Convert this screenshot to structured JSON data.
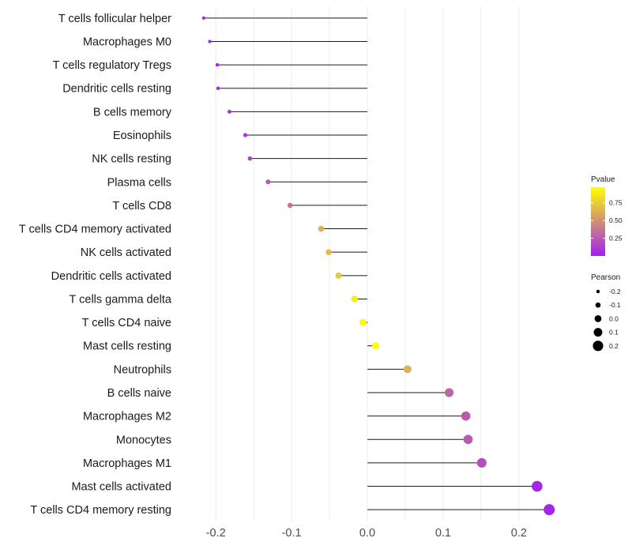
{
  "chart_data": {
    "type": "lollipop",
    "title": "",
    "xlabel": "",
    "ylabel": "",
    "xlim": [
      -0.245,
      0.245
    ],
    "x_ticks": [
      -0.2,
      -0.1,
      0.0,
      0.1,
      0.2
    ],
    "x_tick_labels": [
      "-0.2",
      "-0.1",
      "0.0",
      "0.1",
      "0.2"
    ],
    "grid": true,
    "baseline": 0,
    "categories": [
      "T cells follicular helper",
      "Macrophages M0",
      "T cells regulatory  Tregs",
      "Dendritic cells resting",
      "B cells memory",
      "Eosinophils",
      "NK cells resting",
      "Plasma cells",
      "T cells CD8",
      "T cells CD4 memory activated",
      "NK cells activated",
      "Dendritic cells activated",
      "T cells gamma delta",
      "T cells CD4 naive",
      "Mast cells resting",
      "Neutrophils",
      "B cells naive",
      "Macrophages M2",
      "Monocytes",
      "Macrophages M1",
      "Mast cells activated",
      "T cells CD4 memory resting"
    ],
    "pearson": [
      -0.216,
      -0.208,
      -0.198,
      -0.197,
      -0.182,
      -0.161,
      -0.155,
      -0.131,
      -0.102,
      -0.061,
      -0.051,
      -0.038,
      -0.017,
      -0.006,
      0.011,
      0.053,
      0.108,
      0.13,
      0.133,
      0.151,
      0.224,
      0.24
    ],
    "pvalue": [
      0.02,
      0.03,
      0.04,
      0.04,
      0.06,
      0.1,
      0.12,
      0.25,
      0.37,
      0.62,
      0.68,
      0.74,
      0.9,
      0.96,
      0.97,
      0.63,
      0.3,
      0.26,
      0.25,
      0.2,
      0.03,
      0.02
    ],
    "legend": {
      "position": "right",
      "pvalue": {
        "title": "Pvalue",
        "tick_values": [
          0.25,
          0.5,
          0.75
        ],
        "tick_labels": [
          "0.25",
          "0.50",
          "0.75"
        ],
        "range": [
          0.0,
          0.97
        ],
        "colors": [
          "#a020f0",
          "#ffff00"
        ]
      },
      "pearson": {
        "title": "Pearson",
        "values": [
          -0.2,
          -0.1,
          0.0,
          0.1,
          0.2
        ],
        "labels": [
          "-0.2",
          "-0.1",
          "0.0",
          "0.1",
          "0.2"
        ]
      }
    },
    "colors": {
      "low": "#a020f0",
      "high": "#ffff00",
      "segment": "#1a1a1a",
      "grid": "#ebebeb"
    }
  }
}
